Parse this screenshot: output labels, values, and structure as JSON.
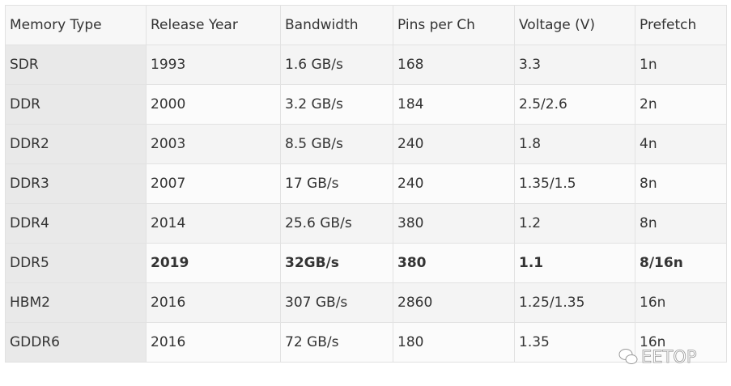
{
  "table": {
    "header": [
      "Memory Type",
      "Release Year",
      "Bandwidth",
      "Pins per Ch",
      "Voltage (V)",
      "Prefetch"
    ],
    "rows": [
      [
        "SDR",
        "1993",
        "1.6 GB/s",
        "168",
        "3.3",
        "1n"
      ],
      [
        "DDR",
        "2000",
        "3.2 GB/s",
        "184",
        "2.5/2.6",
        "2n"
      ],
      [
        "DDR2",
        "2003",
        "8.5 GB/s",
        "240",
        "1.8",
        "4n"
      ],
      [
        "DDR3",
        "2007",
        "17 GB/s",
        "240",
        "1.35/1.5",
        "8n"
      ],
      [
        "DDR4",
        "2014",
        "25.6 GB/s",
        "380",
        "1.2",
        "8n"
      ],
      [
        "DDR5",
        "2019",
        "32GB/s",
        "380",
        "1.1",
        "8/16n"
      ],
      [
        "HBM2",
        "2016",
        "307 GB/s",
        "2860",
        "1.25/1.35",
        "16n"
      ],
      [
        "GDDR6",
        "2016",
        "72 GB/s",
        "180",
        "1.35",
        "16n"
      ]
    ],
    "bold_row": 5
  },
  "watermark": "EETOP"
}
